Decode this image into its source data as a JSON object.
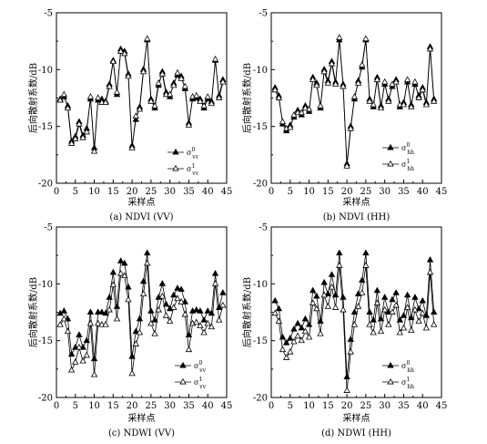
{
  "chart_data": [
    {
      "type": "line",
      "caption": "(a) NDVI (VV)",
      "xlabel": "采样点",
      "ylabel": "后向散射系数/dB",
      "xlim": [
        0,
        45
      ],
      "ylim": [
        -20,
        -5
      ],
      "xticks": [
        "0",
        "5",
        "10",
        "15",
        "20",
        "25",
        "30",
        "35",
        "40",
        "45"
      ],
      "yticks": [
        "-20",
        "-15",
        "-10",
        "-5"
      ],
      "legend_position": "lower-right",
      "series": [
        {
          "name": "σ⁰vv",
          "legend_main": "σ",
          "legend_sup": "0",
          "legend_sub": "vv",
          "marker": "filled-triangle",
          "x": [
            1,
            2,
            3,
            4,
            5,
            6,
            7,
            8,
            9,
            10,
            11,
            12,
            13,
            14,
            15,
            16,
            17,
            18,
            19,
            20,
            21,
            22,
            23,
            24,
            25,
            26,
            27,
            28,
            29,
            30,
            31,
            32,
            33,
            34,
            35,
            36,
            37,
            38,
            39,
            40,
            41,
            42,
            43,
            44
          ],
          "values": [
            -12.6,
            -12.4,
            -13.2,
            -16.3,
            -15.9,
            -14.6,
            -15.8,
            -15.2,
            -12.6,
            -16.9,
            -12.7,
            -12.6,
            -12.8,
            -11.3,
            -9.2,
            -12.2,
            -8.2,
            -8.4,
            -10.4,
            -16.7,
            -14.4,
            -13.3,
            -10.0,
            -7.4,
            -12.6,
            -13.4,
            -11.4,
            -10.2,
            -12.0,
            -12.4,
            -11.2,
            -10.5,
            -10.6,
            -11.7,
            -14.7,
            -12.6,
            -12.5,
            -12.6,
            -13.4,
            -12.6,
            -12.8,
            -9.2,
            -12.3,
            -10.9
          ]
        },
        {
          "name": "σ¹vv",
          "legend_main": "σ",
          "legend_sup": "1",
          "legend_sub": "vv",
          "marker": "open-triangle",
          "x": [
            1,
            2,
            3,
            4,
            5,
            6,
            7,
            8,
            9,
            10,
            11,
            12,
            13,
            14,
            15,
            16,
            17,
            18,
            19,
            20,
            21,
            22,
            23,
            24,
            25,
            26,
            27,
            28,
            29,
            30,
            31,
            32,
            33,
            34,
            35,
            36,
            37,
            38,
            39,
            40,
            41,
            42,
            43,
            44
          ],
          "values": [
            -12.7,
            -12.2,
            -13.4,
            -16.5,
            -16.1,
            -14.8,
            -16.0,
            -15.5,
            -12.4,
            -17.2,
            -12.5,
            -12.9,
            -12.9,
            -11.5,
            -9.3,
            -12.0,
            -8.4,
            -8.6,
            -10.6,
            -16.9,
            -14.1,
            -13.5,
            -10.2,
            -7.3,
            -12.8,
            -13.2,
            -11.2,
            -10.4,
            -12.2,
            -12.2,
            -11.4,
            -10.3,
            -10.8,
            -11.5,
            -14.9,
            -12.4,
            -12.3,
            -12.8,
            -13.2,
            -12.4,
            -13.0,
            -9.1,
            -12.5,
            -11.1
          ]
        }
      ]
    },
    {
      "type": "line",
      "caption": "(b) NDVI (HH)",
      "xlabel": "采样点",
      "ylabel": "后向散射系数/dB",
      "xlim": [
        0,
        45
      ],
      "ylim": [
        -20,
        -5
      ],
      "xticks": [
        "0",
        "5",
        "10",
        "15",
        "20",
        "25",
        "30",
        "35",
        "40",
        "45"
      ],
      "yticks": [
        "-20",
        "-15",
        "-10",
        "-5"
      ],
      "legend_position": "lower-right",
      "series": [
        {
          "name": "σ⁰hh",
          "legend_main": "σ",
          "legend_sup": "0",
          "legend_sub": "hh",
          "marker": "filled-triangle",
          "x": [
            1,
            2,
            3,
            4,
            5,
            6,
            7,
            8,
            9,
            10,
            11,
            12,
            13,
            14,
            15,
            16,
            17,
            18,
            19,
            20,
            21,
            22,
            23,
            24,
            25,
            26,
            27,
            28,
            29,
            30,
            31,
            32,
            33,
            34,
            35,
            36,
            37,
            38,
            39,
            40,
            41,
            42,
            43
          ],
          "values": [
            -11.6,
            -12.3,
            -14.8,
            -15.4,
            -14.9,
            -14.2,
            -13.6,
            -14.0,
            -13.2,
            -13.7,
            -10.7,
            -11.2,
            -13.4,
            -10.0,
            -11.0,
            -9.3,
            -11.1,
            -7.4,
            -11.3,
            -18.3,
            -15.0,
            -12.6,
            -11.0,
            -9.8,
            -7.4,
            -12.6,
            -13.3,
            -10.7,
            -13.2,
            -11.3,
            -12.6,
            -11.5,
            -10.9,
            -13.3,
            -12.9,
            -11.1,
            -13.1,
            -11.3,
            -12.3,
            -11.6,
            -12.9,
            -8.0,
            -12.6
          ]
        },
        {
          "name": "σ¹hh",
          "legend_main": "σ",
          "legend_sup": "1",
          "legend_sub": "hh",
          "marker": "open-triangle",
          "x": [
            1,
            2,
            3,
            4,
            5,
            6,
            7,
            8,
            9,
            10,
            11,
            12,
            13,
            14,
            15,
            16,
            17,
            18,
            19,
            20,
            21,
            22,
            23,
            24,
            25,
            26,
            27,
            28,
            29,
            30,
            31,
            32,
            33,
            34,
            35,
            36,
            37,
            38,
            39,
            40,
            41,
            42,
            43
          ],
          "values": [
            -11.8,
            -12.5,
            -14.6,
            -15.2,
            -15.1,
            -14.0,
            -13.8,
            -13.8,
            -13.4,
            -13.5,
            -10.9,
            -11.4,
            -13.2,
            -10.2,
            -11.2,
            -9.5,
            -11.3,
            -7.2,
            -11.5,
            -18.5,
            -15.2,
            -12.4,
            -11.2,
            -9.6,
            -7.3,
            -12.8,
            -13.1,
            -10.9,
            -13.4,
            -11.1,
            -12.8,
            -11.3,
            -11.1,
            -13.1,
            -13.1,
            -10.9,
            -13.3,
            -11.1,
            -12.5,
            -11.8,
            -13.1,
            -8.2,
            -12.8
          ]
        }
      ]
    },
    {
      "type": "line",
      "caption": "(c) NDWI (VV)",
      "xlabel": "采样点",
      "ylabel": "后向散射系数/dB",
      "xlim": [
        0,
        45
      ],
      "ylim": [
        -20,
        -5
      ],
      "xticks": [
        "0",
        "5",
        "10",
        "15",
        "20",
        "25",
        "30",
        "35",
        "40",
        "45"
      ],
      "yticks": [
        "-20",
        "-15",
        "-10",
        "-5"
      ],
      "legend_position": "lower-right",
      "series": [
        {
          "name": "σ⁰vv",
          "legend_main": "σ",
          "legend_sup": "0",
          "legend_sub": "vv",
          "marker": "filled-triangle",
          "x": [
            1,
            2,
            3,
            4,
            5,
            6,
            7,
            8,
            9,
            10,
            11,
            12,
            13,
            14,
            15,
            16,
            17,
            18,
            19,
            20,
            21,
            22,
            23,
            24,
            25,
            26,
            27,
            28,
            29,
            30,
            31,
            32,
            33,
            34,
            35,
            36,
            37,
            38,
            39,
            40,
            41,
            42,
            43,
            44
          ],
          "values": [
            -12.6,
            -12.4,
            -13.1,
            -16.2,
            -15.6,
            -14.5,
            -15.6,
            -15.0,
            -12.5,
            -16.6,
            -12.5,
            -12.5,
            -12.6,
            -11.2,
            -9.0,
            -12.0,
            -8.0,
            -8.2,
            -10.3,
            -16.4,
            -14.2,
            -13.1,
            -9.8,
            -7.3,
            -12.4,
            -13.2,
            -11.2,
            -10.0,
            -11.8,
            -12.2,
            -11.0,
            -10.4,
            -10.5,
            -11.6,
            -14.5,
            -12.4,
            -12.3,
            -12.4,
            -13.2,
            -12.4,
            -12.6,
            -9.1,
            -12.1,
            -10.8
          ]
        },
        {
          "name": "σ¹vv",
          "legend_main": "σ",
          "legend_sup": "1",
          "legend_sub": "vv",
          "marker": "open-triangle",
          "x": [
            1,
            2,
            3,
            4,
            5,
            6,
            7,
            8,
            9,
            10,
            11,
            12,
            13,
            14,
            15,
            16,
            17,
            18,
            19,
            20,
            21,
            22,
            23,
            24,
            25,
            26,
            27,
            28,
            29,
            30,
            31,
            32,
            33,
            34,
            35,
            36,
            37,
            38,
            39,
            40,
            41,
            42,
            43,
            44
          ],
          "values": [
            -13.6,
            -13.1,
            -14.2,
            -17.6,
            -16.9,
            -15.6,
            -16.8,
            -16.3,
            -13.5,
            -18.0,
            -13.5,
            -13.6,
            -13.6,
            -12.3,
            -10.1,
            -13.1,
            -9.1,
            -9.3,
            -11.4,
            -17.9,
            -15.3,
            -14.3,
            -10.9,
            -8.2,
            -13.5,
            -14.4,
            -12.3,
            -11.1,
            -12.8,
            -13.3,
            -12.1,
            -11.3,
            -11.6,
            -12.7,
            -15.8,
            -13.5,
            -13.4,
            -13.7,
            -14.3,
            -13.5,
            -13.8,
            -10.0,
            -13.2,
            -11.9
          ]
        }
      ]
    },
    {
      "type": "line",
      "caption": "(d) NDWI (HH)",
      "xlabel": "采样点",
      "ylabel": "后向散射系数/dB",
      "xlim": [
        0,
        45
      ],
      "ylim": [
        -20,
        -5
      ],
      "xticks": [
        "0",
        "5",
        "10",
        "15",
        "20",
        "25",
        "30",
        "35",
        "40",
        "45"
      ],
      "yticks": [
        "-20",
        "-15",
        "-10",
        "-5"
      ],
      "legend_position": "lower-right",
      "series": [
        {
          "name": "σ⁰hh",
          "legend_main": "σ",
          "legend_sup": "0",
          "legend_sub": "hh",
          "marker": "filled-triangle",
          "x": [
            1,
            2,
            3,
            4,
            5,
            6,
            7,
            8,
            9,
            10,
            11,
            12,
            13,
            14,
            15,
            16,
            17,
            18,
            19,
            20,
            21,
            22,
            23,
            24,
            25,
            26,
            27,
            28,
            29,
            30,
            31,
            32,
            33,
            34,
            35,
            36,
            37,
            38,
            39,
            40,
            41,
            42,
            43
          ],
          "values": [
            -11.5,
            -12.2,
            -14.7,
            -15.2,
            -14.8,
            -14.0,
            -13.5,
            -13.9,
            -13.1,
            -13.6,
            -10.6,
            -11.1,
            -13.3,
            -9.9,
            -10.9,
            -9.2,
            -11.0,
            -7.3,
            -11.2,
            -18.2,
            -14.9,
            -12.5,
            -10.9,
            -9.7,
            -7.3,
            -12.5,
            -13.2,
            -10.6,
            -13.1,
            -11.2,
            -12.5,
            -11.4,
            -10.8,
            -13.2,
            -12.8,
            -11.0,
            -13.0,
            -11.2,
            -12.2,
            -11.5,
            -12.8,
            -7.9,
            -12.5
          ]
        },
        {
          "name": "σ¹hh",
          "legend_main": "σ",
          "legend_sup": "1",
          "legend_sub": "hh",
          "marker": "open-triangle",
          "x": [
            1,
            2,
            3,
            4,
            5,
            6,
            7,
            8,
            9,
            10,
            11,
            12,
            13,
            14,
            15,
            16,
            17,
            18,
            19,
            20,
            21,
            22,
            23,
            24,
            25,
            26,
            27,
            28,
            29,
            30,
            31,
            32,
            33,
            34,
            35,
            36,
            37,
            38,
            39,
            40,
            41,
            42,
            43
          ],
          "values": [
            -12.6,
            -13.3,
            -15.8,
            -16.5,
            -16.0,
            -15.1,
            -14.6,
            -15.0,
            -14.2,
            -14.7,
            -11.7,
            -12.2,
            -14.4,
            -11.0,
            -12.0,
            -10.3,
            -12.1,
            -8.4,
            -12.3,
            -19.4,
            -16.0,
            -13.6,
            -12.0,
            -10.8,
            -8.4,
            -13.6,
            -14.3,
            -11.7,
            -14.2,
            -12.3,
            -13.6,
            -12.5,
            -11.9,
            -14.3,
            -13.9,
            -12.1,
            -14.1,
            -12.3,
            -13.3,
            -12.6,
            -13.9,
            -9.0,
            -13.6
          ]
        }
      ]
    }
  ]
}
